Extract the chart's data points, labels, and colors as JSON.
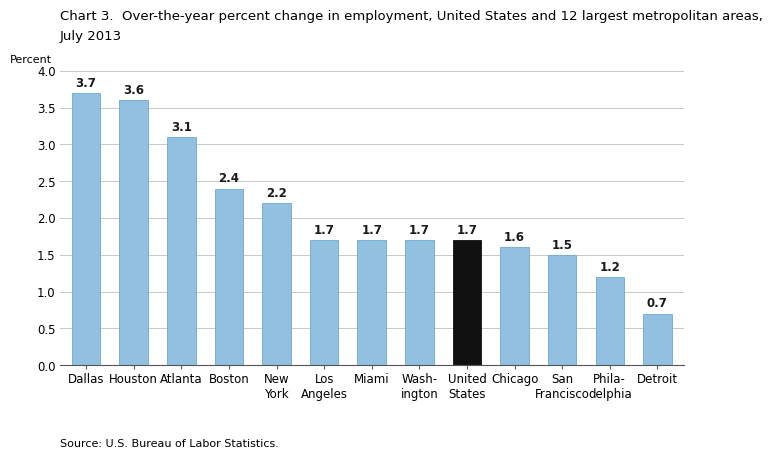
{
  "title_line1": "Chart 3.  Over-the-year percent change in employment, United States and 12 largest metropolitan areas,",
  "title_line2": "July 2013",
  "ylabel": "Percent",
  "source": "Source: U.S. Bureau of Labor Statistics.",
  "categories": [
    "Dallas",
    "Houston",
    "Atlanta",
    "Boston",
    "New\nYork",
    "Los\nAngeles",
    "Miami",
    "Wash-\nington",
    "United\nStates",
    "Chicago",
    "San\nFrancisco",
    "Phila-\ndelphia",
    "Detroit"
  ],
  "values": [
    3.7,
    3.6,
    3.1,
    2.4,
    2.2,
    1.7,
    1.7,
    1.7,
    1.7,
    1.6,
    1.5,
    1.2,
    0.7
  ],
  "bar_colors": [
    "#92c0e0",
    "#92c0e0",
    "#92c0e0",
    "#92c0e0",
    "#92c0e0",
    "#92c0e0",
    "#92c0e0",
    "#92c0e0",
    "#111111",
    "#92c0e0",
    "#92c0e0",
    "#92c0e0",
    "#92c0e0"
  ],
  "ylim": [
    0,
    4.0
  ],
  "yticks": [
    0.0,
    0.5,
    1.0,
    1.5,
    2.0,
    2.5,
    3.0,
    3.5,
    4.0
  ],
  "title_fontsize": 9.5,
  "label_fontsize": 8.5,
  "tick_fontsize": 8.5,
  "value_fontsize": 8.5,
  "source_fontsize": 8.0,
  "ylabel_fontsize": 8.0,
  "bar_edgecolor": "#6aaad4",
  "us_edgecolor": "#111111",
  "background_color": "#ffffff",
  "grid_color": "#c8c8c8",
  "bar_width": 0.6
}
